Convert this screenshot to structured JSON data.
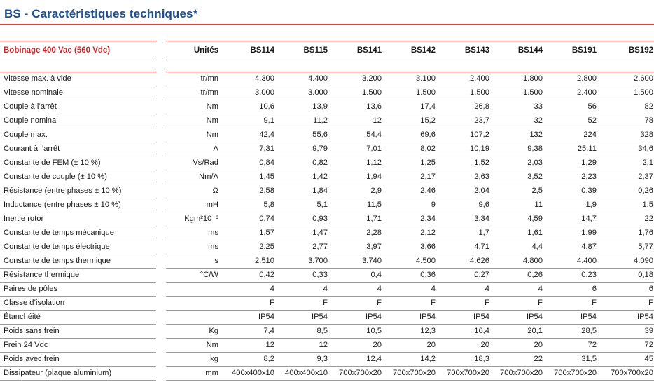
{
  "title": "BS - Caractéristiques techniques*",
  "header": {
    "label": "Bobinage 400 Vac (560 Vdc)",
    "units": "Unités",
    "models": [
      "BS114",
      "BS115",
      "BS141",
      "BS142",
      "BS143",
      "BS144",
      "BS191",
      "BS192"
    ]
  },
  "rows": [
    {
      "label": "Vitesse max. à vide",
      "unit": "tr/mn",
      "values": [
        "4.300",
        "4.400",
        "3.200",
        "3.100",
        "2.400",
        "1.800",
        "2.800",
        "2.600"
      ]
    },
    {
      "label": "Vitesse nominale",
      "unit": "tr/mn",
      "values": [
        "3.000",
        "3.000",
        "1.500",
        "1.500",
        "1.500",
        "1.500",
        "2.400",
        "1.500"
      ]
    },
    {
      "label": "Couple à l’arrêt",
      "unit": "Nm",
      "values": [
        "10,6",
        "13,9",
        "13,6",
        "17,4",
        "26,8",
        "33",
        "56",
        "82"
      ]
    },
    {
      "label": "Couple nominal",
      "unit": "Nm",
      "values": [
        "9,1",
        "11,2",
        "12",
        "15,2",
        "23,7",
        "32",
        "52",
        "78"
      ]
    },
    {
      "label": "Couple max.",
      "unit": "Nm",
      "values": [
        "42,4",
        "55,6",
        "54,4",
        "69,6",
        "107,2",
        "132",
        "224",
        "328"
      ]
    },
    {
      "label": "Courant à l’arrêt",
      "unit": "A",
      "values": [
        "7,31",
        "9,79",
        "7,01",
        "8,02",
        "10,19",
        "9,38",
        "25,11",
        "34,6"
      ]
    },
    {
      "label": "Constante de FEM (± 10 %)",
      "unit": "Vs/Rad",
      "values": [
        "0,84",
        "0,82",
        "1,12",
        "1,25",
        "1,52",
        "2,03",
        "1,29",
        "2,1"
      ]
    },
    {
      "label": "Constante de couple (± 10 %)",
      "unit": "Nm/A",
      "values": [
        "1,45",
        "1,42",
        "1,94",
        "2,17",
        "2,63",
        "3,52",
        "2,23",
        "2,37"
      ]
    },
    {
      "label": "Résistance (entre phases ± 10 %)",
      "unit": "Ω",
      "values": [
        "2,58",
        "1,84",
        "2,9",
        "2,46",
        "2,04",
        "2,5",
        "0,39",
        "0,26"
      ]
    },
    {
      "label": "Inductance (entre phases ± 10 %)",
      "unit": "mH",
      "values": [
        "5,8",
        "5,1",
        "11,5",
        "9",
        "9,6",
        "11",
        "1,9",
        "1,5"
      ]
    },
    {
      "label": "Inertie rotor",
      "unit": "Kgm²10⁻³",
      "values": [
        "0,74",
        "0,93",
        "1,71",
        "2,34",
        "3,34",
        "4,59",
        "14,7",
        "22"
      ]
    },
    {
      "label": "Constante de temps mécanique",
      "unit": "ms",
      "values": [
        "1,57",
        "1,47",
        "2,28",
        "2,12",
        "1,7",
        "1,61",
        "1,99",
        "1,76"
      ]
    },
    {
      "label": "Constante de temps électrique",
      "unit": "ms",
      "values": [
        "2,25",
        "2,77",
        "3,97",
        "3,66",
        "4,71",
        "4,4",
        "4,87",
        "5,77"
      ]
    },
    {
      "label": "Constante de temps thermique",
      "unit": "s",
      "values": [
        "2.510",
        "3.700",
        "3.740",
        "4.500",
        "4.626",
        "4.800",
        "4.400",
        "4.090"
      ]
    },
    {
      "label": "Résistance thermique",
      "unit": "°C/W",
      "values": [
        "0,42",
        "0,33",
        "0,4",
        "0,36",
        "0,27",
        "0,26",
        "0,23",
        "0,18"
      ]
    },
    {
      "label": "Paires de pôles",
      "unit": "",
      "values": [
        "4",
        "4",
        "4",
        "4",
        "4",
        "4",
        "6",
        "6"
      ]
    },
    {
      "label": "Classe d’isolation",
      "unit": "",
      "values": [
        "F",
        "F",
        "F",
        "F",
        "F",
        "F",
        "F",
        "F"
      ]
    },
    {
      "label": "Étanchéité",
      "unit": "",
      "values": [
        "IP54",
        "IP54",
        "IP54",
        "IP54",
        "IP54",
        "IP54",
        "IP54",
        "IP54"
      ]
    },
    {
      "label": "Poids sans frein",
      "unit": "Kg",
      "values": [
        "7,4",
        "8,5",
        "10,5",
        "12,3",
        "16,4",
        "20,1",
        "28,5",
        "39"
      ]
    },
    {
      "label": "Frein 24 Vdc",
      "unit": "Nm",
      "values": [
        "12",
        "12",
        "20",
        "20",
        "20",
        "20",
        "72",
        "72"
      ]
    },
    {
      "label": "Poids avec frein",
      "unit": "kg",
      "values": [
        "8,2",
        "9,3",
        "12,4",
        "14,2",
        "18,3",
        "22",
        "31,5",
        "45"
      ]
    },
    {
      "label": "Dissipateur (plaque aluminium)",
      "unit": "mm",
      "values": [
        "400x400x10",
        "400x400x10",
        "700x700x20",
        "700x700x20",
        "700x700x20",
        "700x700x20",
        "700x700x20",
        "700x700x20"
      ]
    }
  ]
}
